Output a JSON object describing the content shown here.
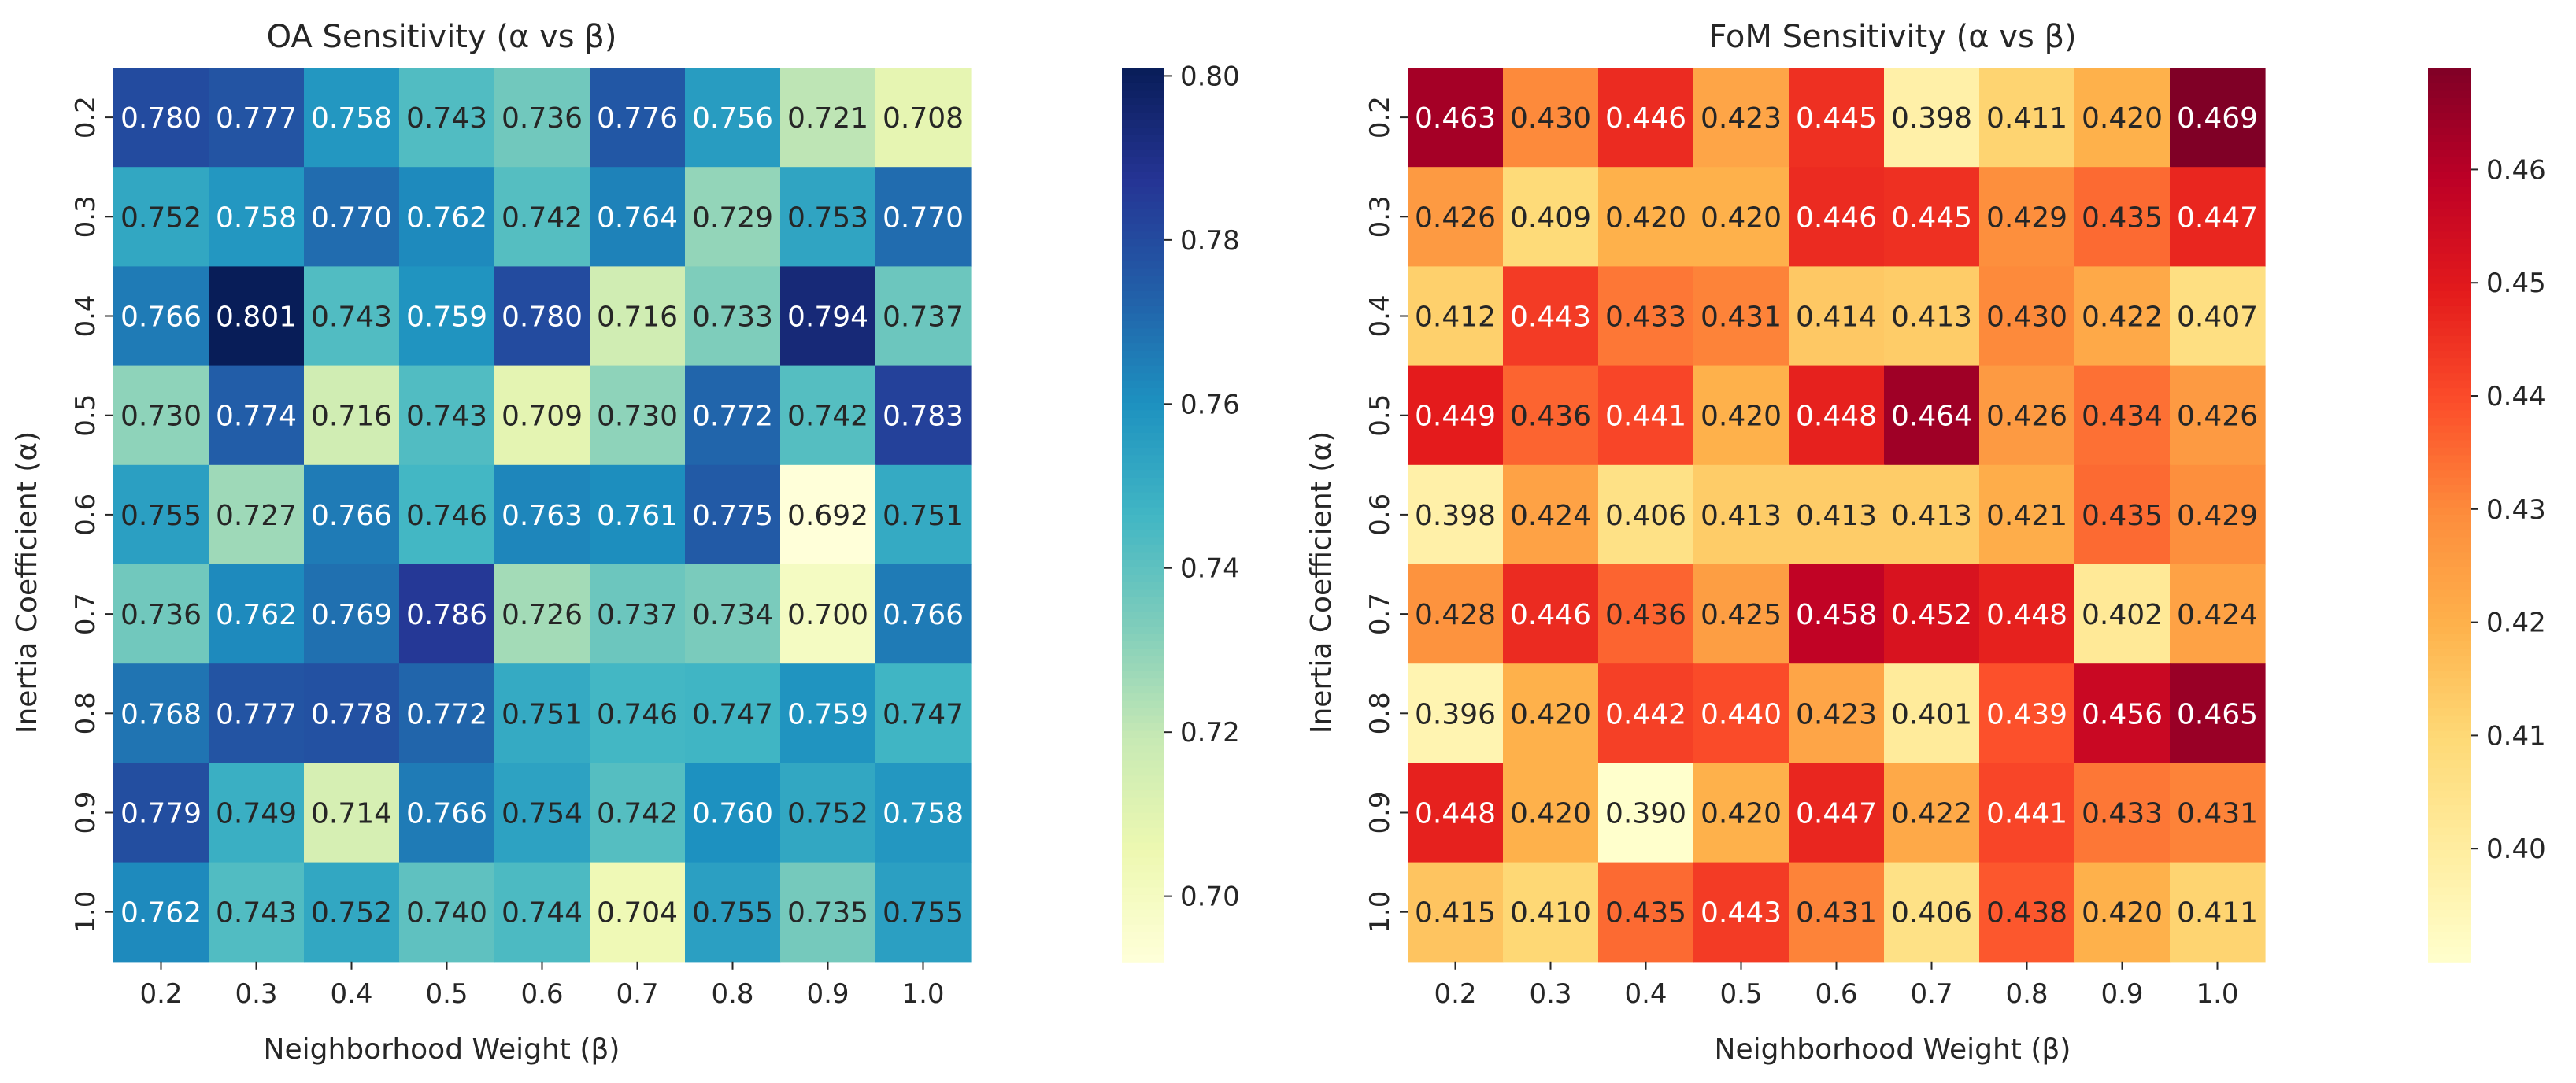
{
  "chart_data": [
    {
      "type": "heatmap",
      "title": "OA Sensitivity (α vs β)",
      "xlabel": "Neighborhood Weight (β)",
      "ylabel": "Inertia Coefficient (α)",
      "x_categories": [
        "0.2",
        "0.3",
        "0.4",
        "0.5",
        "0.6",
        "0.7",
        "0.8",
        "0.9",
        "1.0"
      ],
      "y_categories": [
        "0.2",
        "0.3",
        "0.4",
        "0.5",
        "0.6",
        "0.7",
        "0.8",
        "0.9",
        "1.0"
      ],
      "values": [
        [
          0.78,
          0.777,
          0.758,
          0.743,
          0.736,
          0.776,
          0.756,
          0.721,
          0.708
        ],
        [
          0.752,
          0.758,
          0.77,
          0.762,
          0.742,
          0.764,
          0.729,
          0.753,
          0.77
        ],
        [
          0.766,
          0.801,
          0.743,
          0.759,
          0.78,
          0.716,
          0.733,
          0.794,
          0.737
        ],
        [
          0.73,
          0.774,
          0.716,
          0.743,
          0.709,
          0.73,
          0.772,
          0.742,
          0.783
        ],
        [
          0.755,
          0.727,
          0.766,
          0.746,
          0.763,
          0.761,
          0.775,
          0.692,
          0.751
        ],
        [
          0.736,
          0.762,
          0.769,
          0.786,
          0.726,
          0.737,
          0.734,
          0.7,
          0.766
        ],
        [
          0.768,
          0.777,
          0.778,
          0.772,
          0.751,
          0.746,
          0.747,
          0.759,
          0.747
        ],
        [
          0.779,
          0.749,
          0.714,
          0.766,
          0.754,
          0.742,
          0.76,
          0.752,
          0.758
        ],
        [
          0.762,
          0.743,
          0.752,
          0.74,
          0.744,
          0.704,
          0.755,
          0.735,
          0.755
        ]
      ],
      "value_labels": [
        [
          "0.780",
          "0.777",
          "0.758",
          "0.743",
          "0.736",
          "0.776",
          "0.756",
          "0.721",
          "0.708"
        ],
        [
          "0.752",
          "0.758",
          "0.770",
          "0.762",
          "0.742",
          "0.764",
          "0.729",
          "0.753",
          "0.770"
        ],
        [
          "0.766",
          "0.801",
          "0.743",
          "0.759",
          "0.780",
          "0.716",
          "0.733",
          "0.794",
          "0.737"
        ],
        [
          "0.730",
          "0.774",
          "0.716",
          "0.743",
          "0.709",
          "0.730",
          "0.772",
          "0.742",
          "0.783"
        ],
        [
          "0.755",
          "0.727",
          "0.766",
          "0.746",
          "0.763",
          "0.761",
          "0.775",
          "0.692",
          "0.751"
        ],
        [
          "0.736",
          "0.762",
          "0.769",
          "0.786",
          "0.726",
          "0.737",
          "0.734",
          "0.700",
          "0.766"
        ],
        [
          "0.768",
          "0.777",
          "0.778",
          "0.772",
          "0.751",
          "0.746",
          "0.747",
          "0.759",
          "0.747"
        ],
        [
          "0.779",
          "0.749",
          "0.714",
          "0.766",
          "0.754",
          "0.742",
          "0.760",
          "0.752",
          "0.758"
        ],
        [
          "0.762",
          "0.743",
          "0.752",
          "0.740",
          "0.744",
          "0.704",
          "0.755",
          "0.735",
          "0.755"
        ]
      ],
      "colormap": "YlGnBu",
      "color_stops": [
        "#ffffd9",
        "#edf8b1",
        "#c7e9b4",
        "#7fcdbb",
        "#41b6c4",
        "#1d91c0",
        "#225ea8",
        "#253494",
        "#081d58"
      ],
      "vmin": 0.692,
      "vmax": 0.801,
      "colorbar_ticks": [
        0.7,
        0.72,
        0.74,
        0.76,
        0.78,
        0.8
      ],
      "colorbar_tick_labels": [
        "0.70",
        "0.72",
        "0.74",
        "0.76",
        "0.78",
        "0.80"
      ]
    },
    {
      "type": "heatmap",
      "title": "FoM Sensitivity (α vs β)",
      "xlabel": "Neighborhood Weight (β)",
      "ylabel": "Inertia Coefficient (α)",
      "x_categories": [
        "0.2",
        "0.3",
        "0.4",
        "0.5",
        "0.6",
        "0.7",
        "0.8",
        "0.9",
        "1.0"
      ],
      "y_categories": [
        "0.2",
        "0.3",
        "0.4",
        "0.5",
        "0.6",
        "0.7",
        "0.8",
        "0.9",
        "1.0"
      ],
      "values": [
        [
          0.463,
          0.43,
          0.446,
          0.423,
          0.445,
          0.398,
          0.411,
          0.42,
          0.469
        ],
        [
          0.426,
          0.409,
          0.42,
          0.42,
          0.446,
          0.445,
          0.429,
          0.435,
          0.447
        ],
        [
          0.412,
          0.443,
          0.433,
          0.431,
          0.414,
          0.413,
          0.43,
          0.422,
          0.407
        ],
        [
          0.449,
          0.436,
          0.441,
          0.42,
          0.448,
          0.464,
          0.426,
          0.434,
          0.426
        ],
        [
          0.398,
          0.424,
          0.406,
          0.413,
          0.413,
          0.413,
          0.421,
          0.435,
          0.429
        ],
        [
          0.428,
          0.446,
          0.436,
          0.425,
          0.458,
          0.452,
          0.448,
          0.402,
          0.424
        ],
        [
          0.396,
          0.42,
          0.442,
          0.44,
          0.423,
          0.401,
          0.439,
          0.456,
          0.465
        ],
        [
          0.448,
          0.42,
          0.39,
          0.42,
          0.447,
          0.422,
          0.441,
          0.433,
          0.431
        ],
        [
          0.415,
          0.41,
          0.435,
          0.443,
          0.431,
          0.406,
          0.438,
          0.42,
          0.411
        ]
      ],
      "value_labels": [
        [
          "0.463",
          "0.430",
          "0.446",
          "0.423",
          "0.445",
          "0.398",
          "0.411",
          "0.420",
          "0.469"
        ],
        [
          "0.426",
          "0.409",
          "0.420",
          "0.420",
          "0.446",
          "0.445",
          "0.429",
          "0.435",
          "0.447"
        ],
        [
          "0.412",
          "0.443",
          "0.433",
          "0.431",
          "0.414",
          "0.413",
          "0.430",
          "0.422",
          "0.407"
        ],
        [
          "0.449",
          "0.436",
          "0.441",
          "0.420",
          "0.448",
          "0.464",
          "0.426",
          "0.434",
          "0.426"
        ],
        [
          "0.398",
          "0.424",
          "0.406",
          "0.413",
          "0.413",
          "0.413",
          "0.421",
          "0.435",
          "0.429"
        ],
        [
          "0.428",
          "0.446",
          "0.436",
          "0.425",
          "0.458",
          "0.452",
          "0.448",
          "0.402",
          "0.424"
        ],
        [
          "0.396",
          "0.420",
          "0.442",
          "0.440",
          "0.423",
          "0.401",
          "0.439",
          "0.456",
          "0.465"
        ],
        [
          "0.448",
          "0.420",
          "0.390",
          "0.420",
          "0.447",
          "0.422",
          "0.441",
          "0.433",
          "0.431"
        ],
        [
          "0.415",
          "0.410",
          "0.435",
          "0.443",
          "0.431",
          "0.406",
          "0.438",
          "0.420",
          "0.411"
        ]
      ],
      "colormap": "YlOrRd",
      "color_stops": [
        "#ffffcc",
        "#ffeda0",
        "#fed976",
        "#feb24c",
        "#fd8d3c",
        "#fc4e2a",
        "#e31a1c",
        "#bd0026",
        "#800026"
      ],
      "vmin": 0.39,
      "vmax": 0.469,
      "colorbar_ticks": [
        0.4,
        0.41,
        0.42,
        0.43,
        0.44,
        0.45,
        0.46
      ],
      "colorbar_tick_labels": [
        "0.40",
        "0.41",
        "0.42",
        "0.43",
        "0.44",
        "0.45",
        "0.46"
      ]
    }
  ]
}
